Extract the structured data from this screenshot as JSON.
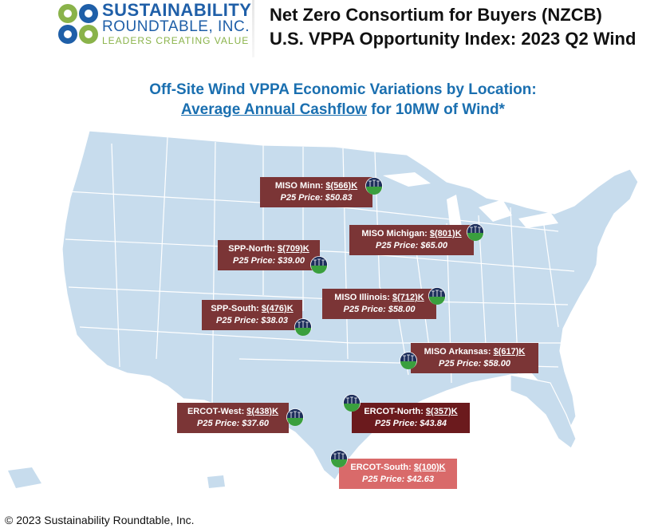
{
  "header": {
    "logo": {
      "line1": "SUSTAINABILITY",
      "line2": "ROUNDTABLE, INC.",
      "line3": "LEADERS CREATING VALUE",
      "colors": {
        "blue": "#1f5fa8",
        "green": "#8ab34a"
      }
    },
    "title_line1": "Net Zero Consortium for Buyers (NZCB)",
    "title_line2": "U.S. VPPA Opportunity Index: 2023 Q2 Wind"
  },
  "subtitle": {
    "line1": "Off-Site Wind VPPA Economic Variations by Location:",
    "line2_link": "Average Annual Cashflow",
    "line2_rest": " for 10MW of Wind*"
  },
  "colors": {
    "map_fill": "#c7dced",
    "map_stroke": "#ffffff",
    "label_standard": "#7b3536",
    "label_dark": "#6b1a1d",
    "label_light": "#d96a6a",
    "subtitle": "#1a6fb0"
  },
  "locations": [
    {
      "name": "MISO Minn: ",
      "cashflow": "$(566)K",
      "price": "P25 Price: $50.83"
    },
    {
      "name": "MISO Michigan: ",
      "cashflow": "$(801)K",
      "price": "P25 Price: $65.00"
    },
    {
      "name": "SPP-North: ",
      "cashflow": "$(709)K",
      "price": "P25 Price: $39.00"
    },
    {
      "name": "MISO Illinois: ",
      "cashflow": "$(712)K",
      "price": "P25 Price: $58.00"
    },
    {
      "name": "SPP-South: ",
      "cashflow": "$(476)K",
      "price": "P25 Price: $38.03"
    },
    {
      "name": "MISO Arkansas: ",
      "cashflow": "$(617)K",
      "price": "P25 Price: $58.00"
    },
    {
      "name": "ERCOT-West: ",
      "cashflow": "$(438)K",
      "price": "P25 Price: $37.60"
    },
    {
      "name": "ERCOT-North: ",
      "cashflow": "$(357)K",
      "price": "P25 Price: $43.84"
    },
    {
      "name": "ERCOT-South: ",
      "cashflow": "$(100)K",
      "price": "P25 Price: $42.63"
    }
  ],
  "footer": {
    "copyright": "© 2023 Sustainability Roundtable, Inc."
  }
}
